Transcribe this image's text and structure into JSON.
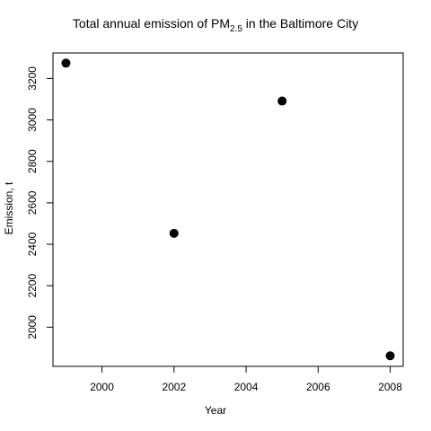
{
  "chart_data": {
    "type": "scatter",
    "title": "Total annual emission of PM",
    "title_subscript": "2.5",
    "title_suffix": " in the Baltimore City",
    "xlabel": "Year",
    "ylabel": "Emission, t",
    "x": [
      1999,
      2002,
      2005,
      2008
    ],
    "y": [
      3274,
      2453,
      3091,
      1862
    ],
    "xlim": [
      1998.64,
      2008.36
    ],
    "ylim": [
      1811,
      3323
    ],
    "xticks": [
      "2000",
      "2002",
      "2004",
      "2006",
      "2008"
    ],
    "yticks": [
      "2000",
      "2200",
      "2400",
      "2600",
      "2800",
      "3000",
      "3200"
    ],
    "grid": false,
    "point_color": "#000000"
  }
}
